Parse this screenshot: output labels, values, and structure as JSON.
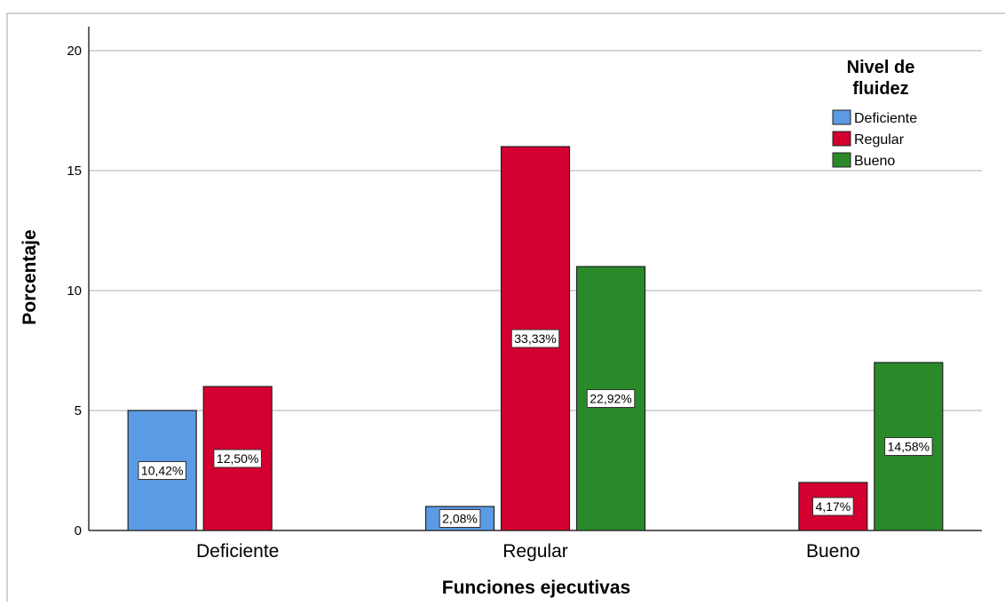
{
  "chart_data": {
    "type": "bar",
    "title": "",
    "xlabel": "Funciones ejecutivas",
    "ylabel": "Porcentaje",
    "ylim": [
      0,
      20
    ],
    "yticks": [
      0,
      5,
      10,
      15,
      20
    ],
    "grid": true,
    "legend": {
      "title": "Nivel de fluidez",
      "position": "top-right"
    },
    "categories": [
      "Deficiente",
      "Regular",
      "Bueno"
    ],
    "series": [
      {
        "name": "Deficiente",
        "color": "#5b9be6",
        "values": [
          5,
          1,
          null
        ],
        "labels": [
          "10,42%",
          "2,08%",
          ""
        ]
      },
      {
        "name": "Regular",
        "color": "#d40030",
        "values": [
          6,
          16,
          2
        ],
        "labels": [
          "12,50%",
          "33,33%",
          "4,17%"
        ]
      },
      {
        "name": "Bueno",
        "color": "#2a8a2a",
        "values": [
          null,
          11,
          7
        ],
        "labels": [
          "",
          "22,92%",
          "14,58%"
        ]
      }
    ]
  }
}
